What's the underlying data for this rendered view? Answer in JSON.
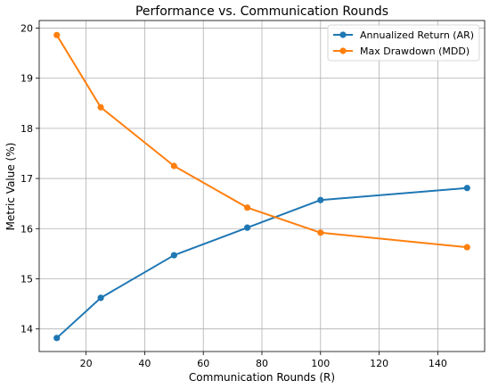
{
  "chart_data": {
    "type": "line",
    "title": "Performance vs. Communication Rounds",
    "xlabel": "Communication Rounds (R)",
    "ylabel": "Metric Value (%)",
    "xlim": [
      4.0,
      156.0
    ],
    "ylim": [
      13.55,
      20.15
    ],
    "xticks": [
      20,
      40,
      60,
      80,
      100,
      120,
      140
    ],
    "yticks": [
      14,
      15,
      16,
      17,
      18,
      19,
      20
    ],
    "grid": true,
    "legend_position": "top-right",
    "x": [
      10,
      25,
      50,
      75,
      100,
      150
    ],
    "series": [
      {
        "name": "Annualized Return (AR)",
        "color": "#1f77b4",
        "values": [
          13.82,
          14.62,
          15.47,
          16.02,
          16.57,
          16.81
        ]
      },
      {
        "name": "Max Drawdown (MDD)",
        "color": "#ff7f0e",
        "values": [
          19.86,
          18.42,
          17.25,
          16.42,
          15.92,
          15.63
        ]
      }
    ]
  }
}
